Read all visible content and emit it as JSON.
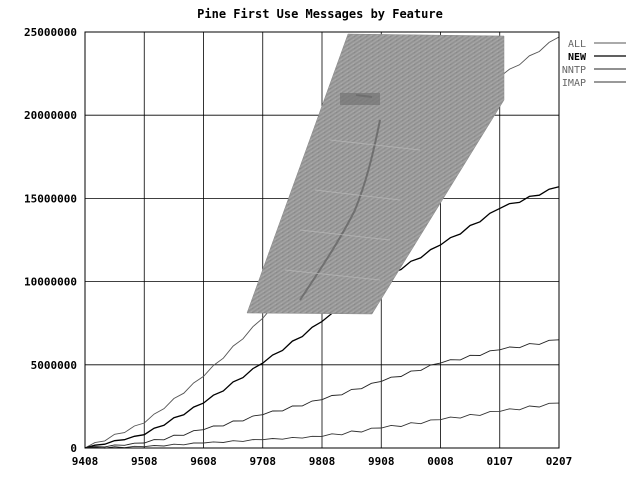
{
  "chart_data": {
    "type": "line",
    "title": "Pine First Use Messages by Feature",
    "xlabel": "",
    "ylabel": "",
    "x_ticks": [
      "9408",
      "9508",
      "9608",
      "9708",
      "9808",
      "9908",
      "0008",
      "0107",
      "0207"
    ],
    "y_ticks": [
      "0",
      "5000000",
      "10000000",
      "15000000",
      "20000000",
      "25000000"
    ],
    "ylim": [
      0,
      25000000
    ],
    "grid": true,
    "legend_position": "top-right",
    "series": [
      {
        "name": "ALL",
        "color": "#555555",
        "values": [
          0,
          1500000,
          4300000,
          7800000,
          11500000,
          15300000,
          18800000,
          22300000,
          24700000
        ]
      },
      {
        "name": "NEW",
        "color": "#000000",
        "values": [
          0,
          800000,
          2700000,
          5100000,
          7600000,
          10100000,
          12200000,
          14400000,
          15700000
        ]
      },
      {
        "name": "NNTP",
        "color": "#222222",
        "values": [
          0,
          300000,
          1100000,
          2000000,
          2900000,
          4000000,
          5100000,
          5900000,
          6500000
        ]
      },
      {
        "name": "IMAP",
        "color": "#333333",
        "values": [
          0,
          80000,
          300000,
          500000,
          700000,
          1200000,
          1700000,
          2200000,
          2700000
        ]
      }
    ],
    "overlay": {
      "icon": "inset-photo",
      "description_color": "#9a9a9a"
    }
  }
}
